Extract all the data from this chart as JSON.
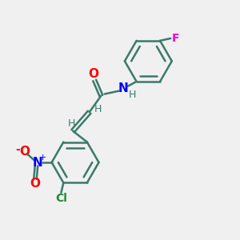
{
  "bg_color": "#f0f0f0",
  "bond_color": "#3a7a6a",
  "atom_colors": {
    "O": "#ff0000",
    "N_amide": "#0000ff",
    "N_nitro": "#0000ff",
    "F": "#ff00cc",
    "Cl": "#228833",
    "H": "#3a7a6a",
    "C": "#3a7a6a"
  },
  "font_size": 10,
  "line_width": 1.8
}
